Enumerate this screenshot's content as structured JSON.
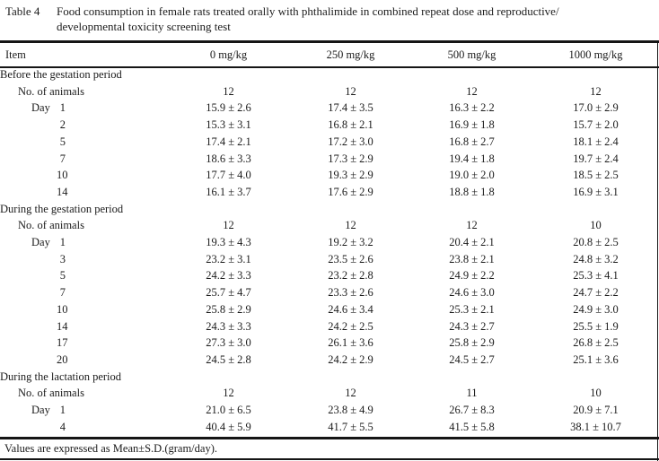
{
  "caption": {
    "label": "Table 4",
    "line1": "Food consumption in female rats treated orally with phthalimide in combined repeat dose and reproductive/",
    "line2": "developmental toxicity screening test"
  },
  "table": {
    "columns": [
      "Item",
      "0 mg/kg",
      "250 mg/kg",
      "500 mg/kg",
      "1000 mg/kg"
    ],
    "no_of_animals_label": "No. of animals",
    "day_word": "Day",
    "sections": [
      {
        "header": "Before the gestation period",
        "no_of_animals": [
          "12",
          "12",
          "12",
          "12"
        ],
        "days": [
          {
            "day": "1",
            "values": [
              "15.9 ± 2.6",
              "17.4 ± 3.5",
              "16.3 ± 2.2",
              "17.0 ± 2.9"
            ]
          },
          {
            "day": "2",
            "values": [
              "15.3 ± 3.1",
              "16.8 ± 2.1",
              "16.9 ± 1.8",
              "15.7 ± 2.0"
            ]
          },
          {
            "day": "5",
            "values": [
              "17.4 ± 2.1",
              "17.2 ± 3.0",
              "16.8 ± 2.7",
              "18.1 ± 2.4"
            ]
          },
          {
            "day": "7",
            "values": [
              "18.6 ± 3.3",
              "17.3 ± 2.9",
              "19.4 ± 1.8",
              "19.7 ± 2.4"
            ]
          },
          {
            "day": "10",
            "values": [
              "17.7 ± 4.0",
              "19.3 ± 2.9",
              "19.0 ± 2.0",
              "18.5 ± 2.5"
            ]
          },
          {
            "day": "14",
            "values": [
              "16.1 ± 3.7",
              "17.6 ± 2.9",
              "18.8 ± 1.8",
              "16.9 ± 3.1"
            ]
          }
        ]
      },
      {
        "header": "During the gestation period",
        "no_of_animals": [
          "12",
          "12",
          "12",
          "10"
        ],
        "days": [
          {
            "day": "1",
            "values": [
              "19.3 ± 4.3",
              "19.2 ± 3.2",
              "20.4 ± 2.1",
              "20.8 ± 2.5"
            ]
          },
          {
            "day": "3",
            "values": [
              "23.2 ± 3.1",
              "23.5 ± 2.6",
              "23.8 ± 2.1",
              "24.8 ± 3.2"
            ]
          },
          {
            "day": "5",
            "values": [
              "24.2 ± 3.3",
              "23.2 ± 2.8",
              "24.9 ± 2.2",
              "25.3 ± 4.1"
            ]
          },
          {
            "day": "7",
            "values": [
              "25.7 ± 4.7",
              "23.3 ± 2.6",
              "24.6 ± 3.0",
              "24.7 ± 2.2"
            ]
          },
          {
            "day": "10",
            "values": [
              "25.8 ± 2.9",
              "24.6 ± 3.4",
              "25.3 ± 2.1",
              "24.9 ± 3.0"
            ]
          },
          {
            "day": "14",
            "values": [
              "24.3 ± 3.3",
              "24.2 ± 2.5",
              "24.3 ± 2.7",
              "25.5 ± 1.9"
            ]
          },
          {
            "day": "17",
            "values": [
              "27.3 ± 3.0",
              "26.1 ± 3.6",
              "25.8 ± 2.9",
              "26.8 ± 2.5"
            ]
          },
          {
            "day": "20",
            "values": [
              "24.5 ± 2.8",
              "24.2 ± 2.9",
              "24.5 ± 2.7",
              "25.1 ± 3.6"
            ]
          }
        ]
      },
      {
        "header": "During the lactation period",
        "no_of_animals": [
          "12",
          "12",
          "11",
          "10"
        ],
        "days": [
          {
            "day": "1",
            "values": [
              "21.0 ± 6.5",
              "23.8 ± 4.9",
              "26.7 ± 8.3",
              "20.9 ± 7.1"
            ]
          },
          {
            "day": "4",
            "values": [
              "40.4 ± 5.9",
              "41.7 ± 5.5",
              "41.5 ± 5.8",
              "38.1 ± 10.7"
            ]
          }
        ]
      }
    ],
    "footnote": "Values are expressed as Mean±S.D.(gram/day)."
  }
}
